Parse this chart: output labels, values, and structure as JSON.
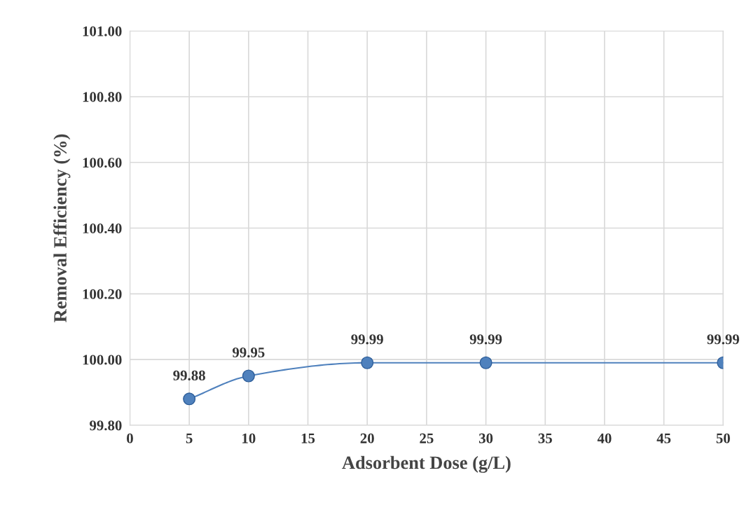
{
  "chart_data": {
    "type": "line",
    "xlabel": "Adsorbent Dose (g/L)",
    "ylabel": "Removal Efficiency (%)",
    "x": [
      5,
      10,
      20,
      30,
      50
    ],
    "series": [
      {
        "color": "#4f81bd",
        "values": [
          99.88,
          99.95,
          99.99,
          99.99,
          99.99
        ]
      }
    ],
    "xlim": [
      0,
      50
    ],
    "xticks": [
      0,
      5,
      10,
      15,
      20,
      25,
      30,
      35,
      40,
      45,
      50
    ],
    "ylim": [
      99.8,
      101.0
    ],
    "yticks": [
      {
        "value": 99.8,
        "label": "99.80"
      },
      {
        "value": 100.0,
        "label": "100.00"
      },
      {
        "value": 100.2,
        "label": "100.20"
      },
      {
        "value": 100.4,
        "label": "100.40"
      },
      {
        "value": 100.6,
        "label": "100.60"
      },
      {
        "value": 100.8,
        "label": "100.80"
      },
      {
        "value": 101.0,
        "label": "101.00"
      }
    ],
    "grid": true,
    "marker": "circle",
    "line_style": "solid",
    "data_labels": true
  }
}
